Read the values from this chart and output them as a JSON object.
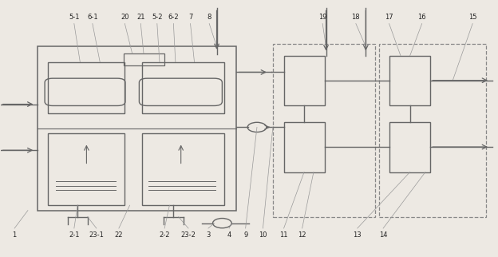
{
  "bg_color": "#ede9e3",
  "line_color": "#666666",
  "text_color": "#222222",
  "dash_color": "#888888"
}
